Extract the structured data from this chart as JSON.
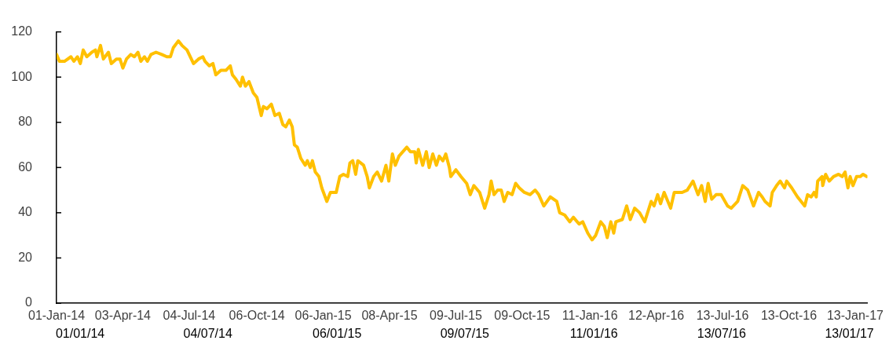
{
  "chart_data": {
    "type": "line",
    "x": [
      "2014-01-01",
      "2014-01-05",
      "2014-01-12",
      "2014-01-21",
      "2014-01-25",
      "2014-01-30",
      "2014-02-03",
      "2014-02-07",
      "2014-02-12",
      "2014-02-19",
      "2014-02-24",
      "2014-02-26",
      "2014-03-03",
      "2014-03-07",
      "2014-03-14",
      "2014-03-18",
      "2014-03-25",
      "2014-03-30",
      "2014-04-03",
      "2014-04-08",
      "2014-04-14",
      "2014-04-19",
      "2014-04-24",
      "2014-04-28",
      "2014-05-03",
      "2014-05-07",
      "2014-05-12",
      "2014-05-19",
      "2014-05-27",
      "2014-06-03",
      "2014-06-08",
      "2014-06-12",
      "2014-06-19",
      "2014-06-24",
      "2014-07-01",
      "2014-07-10",
      "2014-07-17",
      "2014-07-23",
      "2014-07-26",
      "2014-08-01",
      "2014-08-06",
      "2014-08-10",
      "2014-08-17",
      "2014-08-24",
      "2014-08-30",
      "2014-09-02",
      "2014-09-07",
      "2014-09-13",
      "2014-09-16",
      "2014-09-20",
      "2014-09-25",
      "2014-10-01",
      "2014-10-06",
      "2014-10-12",
      "2014-10-15",
      "2014-10-20",
      "2014-10-26",
      "2014-10-31",
      "2014-11-06",
      "2014-11-11",
      "2014-11-15",
      "2014-11-20",
      "2014-11-24",
      "2014-11-27",
      "2014-12-01",
      "2014-12-06",
      "2014-12-12",
      "2014-12-15",
      "2014-12-19",
      "2014-12-22",
      "2014-12-26",
      "2014-12-31",
      "2015-01-04",
      "2015-01-11",
      "2015-01-16",
      "2015-01-24",
      "2015-01-29",
      "2015-02-03",
      "2015-02-09",
      "2015-02-12",
      "2015-02-16",
      "2015-02-20",
      "2015-02-23",
      "2015-03-03",
      "2015-03-08",
      "2015-03-11",
      "2015-03-17",
      "2015-03-22",
      "2015-03-28",
      "2015-04-03",
      "2015-04-07",
      "2015-04-12",
      "2015-04-16",
      "2015-04-21",
      "2015-05-02",
      "2015-05-07",
      "2015-05-13",
      "2015-05-15",
      "2015-05-18",
      "2015-05-24",
      "2015-05-29",
      "2015-06-02",
      "2015-06-07",
      "2015-06-12",
      "2015-06-16",
      "2015-06-21",
      "2015-06-25",
      "2015-06-30",
      "2015-07-02",
      "2015-07-09",
      "2015-07-16",
      "2015-07-24",
      "2015-07-29",
      "2015-08-03",
      "2015-08-11",
      "2015-08-18",
      "2015-08-24",
      "2015-08-27",
      "2015-08-31",
      "2015-09-05",
      "2015-09-10",
      "2015-09-14",
      "2015-09-19",
      "2015-09-25",
      "2015-09-30",
      "2015-10-05",
      "2015-10-12",
      "2015-10-20",
      "2015-10-27",
      "2015-11-01",
      "2015-11-08",
      "2015-11-17",
      "2015-11-26",
      "2015-11-30",
      "2015-12-07",
      "2015-12-14",
      "2015-12-19",
      "2015-12-27",
      "2016-01-01",
      "2016-01-08",
      "2016-01-14",
      "2016-01-19",
      "2016-01-26",
      "2016-01-31",
      "2016-02-04",
      "2016-02-09",
      "2016-02-13",
      "2016-02-16",
      "2016-02-25",
      "2016-03-02",
      "2016-03-07",
      "2016-03-13",
      "2016-03-20",
      "2016-03-27",
      "2016-04-05",
      "2016-04-09",
      "2016-04-14",
      "2016-04-18",
      "2016-04-23",
      "2016-05-02",
      "2016-05-07",
      "2016-05-18",
      "2016-05-25",
      "2016-06-02",
      "2016-06-09",
      "2016-06-14",
      "2016-06-19",
      "2016-06-23",
      "2016-06-28",
      "2016-07-04",
      "2016-07-11",
      "2016-07-20",
      "2016-07-25",
      "2016-08-03",
      "2016-08-10",
      "2016-08-17",
      "2016-08-25",
      "2016-09-01",
      "2016-09-06",
      "2016-09-10",
      "2016-09-17",
      "2016-09-20",
      "2016-09-26",
      "2016-10-01",
      "2016-10-07",
      "2016-10-10",
      "2016-10-17",
      "2016-10-25",
      "2016-10-30",
      "2016-11-04",
      "2016-11-08",
      "2016-11-13",
      "2016-11-17",
      "2016-11-20",
      "2016-11-22",
      "2016-11-28",
      "2016-11-29",
      "2016-12-03",
      "2016-12-08",
      "2016-12-14",
      "2016-12-21",
      "2016-12-26",
      "2016-12-30",
      "2017-01-03",
      "2017-01-06",
      "2017-01-10",
      "2017-01-15",
      "2017-01-20",
      "2017-01-24",
      "2017-01-29"
    ],
    "series": [
      {
        "color": "#ffc000",
        "values": [
          110,
          107,
          107,
          109,
          107,
          109,
          106,
          112,
          109,
          111,
          112,
          109,
          114,
          108,
          111,
          106,
          108,
          108,
          104,
          108,
          110,
          109,
          111,
          107,
          109,
          107,
          110,
          111,
          110,
          109,
          109,
          113,
          116,
          114,
          112,
          106,
          108,
          109,
          107,
          105,
          106,
          101,
          103,
          103,
          105,
          101,
          99,
          96,
          100,
          96,
          98,
          93,
          91,
          83,
          87,
          86,
          88,
          83,
          84,
          79,
          78,
          81,
          78,
          70,
          69,
          64,
          61,
          63,
          60,
          63,
          58,
          56,
          51,
          45,
          49,
          49,
          56,
          57,
          56,
          62,
          63,
          57,
          63,
          61,
          56,
          51,
          56,
          58,
          54,
          61,
          54,
          66,
          61,
          65,
          69,
          67,
          67,
          62,
          68,
          61,
          67,
          60,
          66,
          61,
          65,
          63,
          66,
          60,
          56,
          59,
          56,
          53,
          48,
          52,
          49,
          42,
          48,
          54,
          48,
          50,
          50,
          45,
          49,
          48,
          53,
          51,
          49,
          48,
          50,
          48,
          43,
          47,
          45,
          40,
          39,
          36,
          38,
          35,
          36,
          31,
          28,
          30,
          36,
          34,
          29,
          36,
          31,
          36,
          37,
          43,
          37,
          42,
          40,
          36,
          45,
          43,
          48,
          44,
          49,
          42,
          49,
          49,
          50,
          54,
          48,
          52,
          45,
          53,
          46,
          48,
          48,
          43,
          42,
          45,
          52,
          50,
          43,
          49,
          47,
          45,
          43,
          49,
          52,
          54,
          51,
          54,
          51,
          47,
          45,
          43,
          48,
          47,
          49,
          47,
          54,
          56,
          52,
          57,
          54,
          56,
          57,
          56,
          58,
          51,
          56,
          52,
          56,
          56,
          57,
          56
        ]
      }
    ],
    "xlim": [
      "2014-01-01",
      "2017-01-30"
    ],
    "xticks": [
      {
        "value": "2014-01-01",
        "label": "01-Jan-14"
      },
      {
        "value": "2014-04-03",
        "label": "03-Apr-14"
      },
      {
        "value": "2014-07-04",
        "label": "04-Jul-14"
      },
      {
        "value": "2014-10-06",
        "label": "06-Oct-14"
      },
      {
        "value": "2015-01-06",
        "label": "06-Jan-15"
      },
      {
        "value": "2015-04-08",
        "label": "08-Apr-15"
      },
      {
        "value": "2015-07-09",
        "label": "09-Jul-15"
      },
      {
        "value": "2015-10-09",
        "label": "09-Oct-15"
      },
      {
        "value": "2016-01-11",
        "label": "11-Jan-16"
      },
      {
        "value": "2016-04-12",
        "label": "12-Apr-16"
      },
      {
        "value": "2016-07-13",
        "label": "13-Jul-16"
      },
      {
        "value": "2016-10-13",
        "label": "13-Oct-16"
      },
      {
        "value": "2017-01-13",
        "label": "13-Jan-17"
      }
    ],
    "x2lim": [
      "2013-11-28",
      "2017-02-08"
    ],
    "x2ticks": [
      {
        "value": "2014-01-01",
        "label": "01/01/14"
      },
      {
        "value": "2014-07-04",
        "label": "04/07/14"
      },
      {
        "value": "2015-01-06",
        "label": "06/01/15"
      },
      {
        "value": "2015-07-09",
        "label": "09/07/15"
      },
      {
        "value": "2016-01-11",
        "label": "11/01/16"
      },
      {
        "value": "2016-07-13",
        "label": "13/07/16"
      },
      {
        "value": "2017-01-13",
        "label": "13/01/17"
      }
    ],
    "ylim": [
      0,
      120
    ],
    "yticks": [
      0,
      20,
      40,
      60,
      80,
      100,
      120
    ]
  }
}
